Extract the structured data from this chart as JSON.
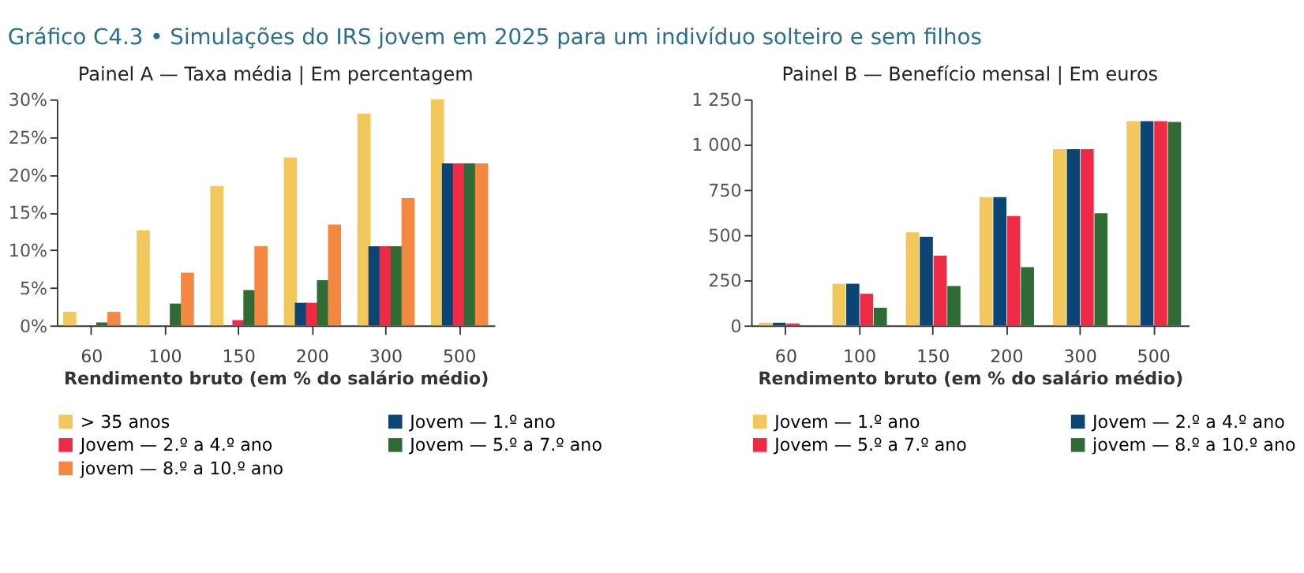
{
  "chart_data": [
    {
      "type": "bar",
      "title": "Painel A — Taxa média | Em percentagem",
      "xlabel": "Rendimento bruto (em % do salário médio)",
      "categories": [
        "60",
        "100",
        "150",
        "200",
        "300",
        "500"
      ],
      "ylim": [
        0,
        30
      ],
      "yticks": [
        {
          "value": 0,
          "label": "0%"
        },
        {
          "value": 5,
          "label": "5%"
        },
        {
          "value": 10,
          "label": "10%"
        },
        {
          "value": 15,
          "label": "15%"
        },
        {
          "value": 20,
          "label": "20%"
        },
        {
          "value": 25,
          "label": "25%"
        },
        {
          "value": 30,
          "label": "30%"
        }
      ],
      "grid": false,
      "legend": "bottom",
      "annotations": [
        "Gráfico C4.3 • Simulações do IRS jovem em 2025 para um indivíduo solteiro e sem filhos"
      ],
      "series": [
        {
          "name": "> 35 anos",
          "color": "#f2c75c",
          "values": [
            1.8,
            12.6,
            18.5,
            22.3,
            28.1,
            30
          ]
        },
        {
          "name": "Jovem — 1.º ano",
          "color": "#0b4576",
          "values": [
            0,
            0,
            0,
            3,
            10.5,
            21.5
          ]
        },
        {
          "name": "Jovem — 2.º a 4.º ano",
          "color": "#ee2a45",
          "values": [
            0,
            0,
            0.7,
            3,
            10.5,
            21.5
          ]
        },
        {
          "name": "Jovem — 5.º a 7.º ano",
          "color": "#2e6b35",
          "values": [
            0.4,
            2.9,
            4.7,
            6,
            10.5,
            21.5
          ]
        },
        {
          "name": "jovem — 8.º a 10.º ano",
          "color": "#f58840",
          "values": [
            1.8,
            7,
            10.5,
            13.4,
            16.9,
            21.5
          ]
        }
      ]
    },
    {
      "type": "bar",
      "title": "Painel B — Benefício mensal | Em euros",
      "xlabel": "Rendimento bruto (em % do salário médio)",
      "categories": [
        "60",
        "100",
        "150",
        "200",
        "300",
        "500"
      ],
      "ylim": [
        0,
        1250
      ],
      "yticks": [
        0,
        250,
        500,
        750,
        {
          "value": 1000,
          "label": "1 000"
        },
        {
          "value": 1250,
          "label": "1 250"
        }
      ],
      "grid": false,
      "legend": "bottom",
      "series": [
        {
          "name": "Jovem — 1.º ano",
          "color": "#f2c75c",
          "values": [
            15,
            230,
            515,
            710,
            975,
            1130
          ]
        },
        {
          "name": "Jovem — 2.º a 4.º ano",
          "color": "#0b4576",
          "values": [
            15,
            230,
            490,
            710,
            975,
            1130
          ]
        },
        {
          "name": "Jovem — 5.º a 7.º ano",
          "color": "#ee2a45",
          "values": [
            10,
            175,
            385,
            605,
            975,
            1130
          ]
        },
        {
          "name": "jovem — 8.º a 10.º ano",
          "color": "#2e6b35",
          "values": [
            0,
            98,
            218,
            322,
            620,
            1125
          ]
        }
      ]
    }
  ]
}
